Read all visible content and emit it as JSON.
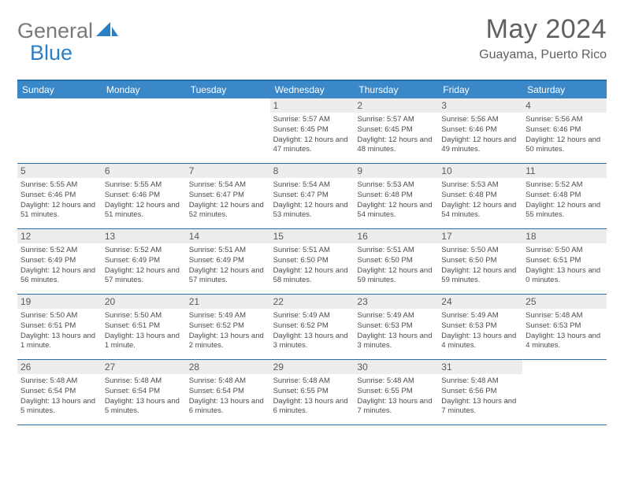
{
  "brand": {
    "text1": "General",
    "text2": "Blue"
  },
  "title": "May 2024",
  "location": "Guayama, Puerto Rico",
  "colors": {
    "header_bg": "#3b88c9",
    "border": "#2670ad",
    "daynum_bg": "#ededed",
    "text_muted": "#606060",
    "brand_gray": "#7a7a7a",
    "brand_blue": "#2d7fc4"
  },
  "dayLabels": [
    "Sunday",
    "Monday",
    "Tuesday",
    "Wednesday",
    "Thursday",
    "Friday",
    "Saturday"
  ],
  "weeks": [
    [
      {
        "n": "",
        "sr": "",
        "ss": "",
        "dl": ""
      },
      {
        "n": "",
        "sr": "",
        "ss": "",
        "dl": ""
      },
      {
        "n": "",
        "sr": "",
        "ss": "",
        "dl": ""
      },
      {
        "n": "1",
        "sr": "5:57 AM",
        "ss": "6:45 PM",
        "dl": "12 hours and 47 minutes."
      },
      {
        "n": "2",
        "sr": "5:57 AM",
        "ss": "6:45 PM",
        "dl": "12 hours and 48 minutes."
      },
      {
        "n": "3",
        "sr": "5:56 AM",
        "ss": "6:46 PM",
        "dl": "12 hours and 49 minutes."
      },
      {
        "n": "4",
        "sr": "5:56 AM",
        "ss": "6:46 PM",
        "dl": "12 hours and 50 minutes."
      }
    ],
    [
      {
        "n": "5",
        "sr": "5:55 AM",
        "ss": "6:46 PM",
        "dl": "12 hours and 51 minutes."
      },
      {
        "n": "6",
        "sr": "5:55 AM",
        "ss": "6:46 PM",
        "dl": "12 hours and 51 minutes."
      },
      {
        "n": "7",
        "sr": "5:54 AM",
        "ss": "6:47 PM",
        "dl": "12 hours and 52 minutes."
      },
      {
        "n": "8",
        "sr": "5:54 AM",
        "ss": "6:47 PM",
        "dl": "12 hours and 53 minutes."
      },
      {
        "n": "9",
        "sr": "5:53 AM",
        "ss": "6:48 PM",
        "dl": "12 hours and 54 minutes."
      },
      {
        "n": "10",
        "sr": "5:53 AM",
        "ss": "6:48 PM",
        "dl": "12 hours and 54 minutes."
      },
      {
        "n": "11",
        "sr": "5:52 AM",
        "ss": "6:48 PM",
        "dl": "12 hours and 55 minutes."
      }
    ],
    [
      {
        "n": "12",
        "sr": "5:52 AM",
        "ss": "6:49 PM",
        "dl": "12 hours and 56 minutes."
      },
      {
        "n": "13",
        "sr": "5:52 AM",
        "ss": "6:49 PM",
        "dl": "12 hours and 57 minutes."
      },
      {
        "n": "14",
        "sr": "5:51 AM",
        "ss": "6:49 PM",
        "dl": "12 hours and 57 minutes."
      },
      {
        "n": "15",
        "sr": "5:51 AM",
        "ss": "6:50 PM",
        "dl": "12 hours and 58 minutes."
      },
      {
        "n": "16",
        "sr": "5:51 AM",
        "ss": "6:50 PM",
        "dl": "12 hours and 59 minutes."
      },
      {
        "n": "17",
        "sr": "5:50 AM",
        "ss": "6:50 PM",
        "dl": "12 hours and 59 minutes."
      },
      {
        "n": "18",
        "sr": "5:50 AM",
        "ss": "6:51 PM",
        "dl": "13 hours and 0 minutes."
      }
    ],
    [
      {
        "n": "19",
        "sr": "5:50 AM",
        "ss": "6:51 PM",
        "dl": "13 hours and 1 minute."
      },
      {
        "n": "20",
        "sr": "5:50 AM",
        "ss": "6:51 PM",
        "dl": "13 hours and 1 minute."
      },
      {
        "n": "21",
        "sr": "5:49 AM",
        "ss": "6:52 PM",
        "dl": "13 hours and 2 minutes."
      },
      {
        "n": "22",
        "sr": "5:49 AM",
        "ss": "6:52 PM",
        "dl": "13 hours and 3 minutes."
      },
      {
        "n": "23",
        "sr": "5:49 AM",
        "ss": "6:53 PM",
        "dl": "13 hours and 3 minutes."
      },
      {
        "n": "24",
        "sr": "5:49 AM",
        "ss": "6:53 PM",
        "dl": "13 hours and 4 minutes."
      },
      {
        "n": "25",
        "sr": "5:48 AM",
        "ss": "6:53 PM",
        "dl": "13 hours and 4 minutes."
      }
    ],
    [
      {
        "n": "26",
        "sr": "5:48 AM",
        "ss": "6:54 PM",
        "dl": "13 hours and 5 minutes."
      },
      {
        "n": "27",
        "sr": "5:48 AM",
        "ss": "6:54 PM",
        "dl": "13 hours and 5 minutes."
      },
      {
        "n": "28",
        "sr": "5:48 AM",
        "ss": "6:54 PM",
        "dl": "13 hours and 6 minutes."
      },
      {
        "n": "29",
        "sr": "5:48 AM",
        "ss": "6:55 PM",
        "dl": "13 hours and 6 minutes."
      },
      {
        "n": "30",
        "sr": "5:48 AM",
        "ss": "6:55 PM",
        "dl": "13 hours and 7 minutes."
      },
      {
        "n": "31",
        "sr": "5:48 AM",
        "ss": "6:56 PM",
        "dl": "13 hours and 7 minutes."
      },
      {
        "n": "",
        "sr": "",
        "ss": "",
        "dl": ""
      }
    ]
  ],
  "labels": {
    "sunrise": "Sunrise:",
    "sunset": "Sunset:",
    "daylight": "Daylight:"
  }
}
